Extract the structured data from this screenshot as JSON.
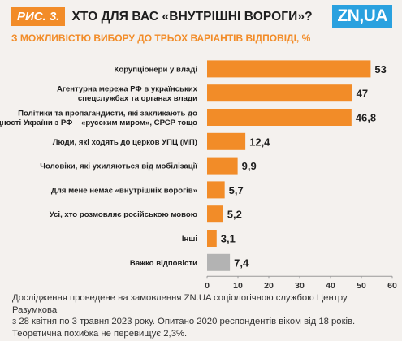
{
  "header": {
    "badge": "РИС. 3.",
    "title": "ХТО ДЛЯ ВАС «ВНУТРІШНІ ВОРОГИ»?",
    "subtitle": "З МОЖЛИВІСТЮ ВИБОРУ ДО ТРЬОХ ВАРІАНТІВ ВІДПОВІДІ, %",
    "logo": "ZN,UA"
  },
  "chart_data": {
    "type": "bar",
    "orientation": "horizontal",
    "categories": [
      [
        "Корупціонери у владі"
      ],
      [
        "Агентурна мережа РФ в українських",
        "спецслужбах та органах влади"
      ],
      [
        "Політики та пропагандисти, які закликають до",
        "єдності України з РФ – «русским миром», СРСР тощо"
      ],
      [
        "Люди, які ходять до церков УПЦ (МП)"
      ],
      [
        "Чоловіки, які ухиляються від мобілізації"
      ],
      [
        "Для мене немає «внутрішніх ворогів»"
      ],
      [
        "Усі, хто розмовляє російською мовою"
      ],
      [
        "Інші"
      ],
      [
        "Важко відповісти"
      ]
    ],
    "values": [
      53,
      47,
      46.8,
      12.4,
      9.9,
      5.7,
      5.2,
      3.1,
      7.4
    ],
    "value_labels": [
      "53",
      "47",
      "46,8",
      "12,4",
      "9,9",
      "5,7",
      "5,2",
      "3,1",
      "7,4"
    ],
    "bar_colors": [
      "#f28c28",
      "#f28c28",
      "#f28c28",
      "#f28c28",
      "#f28c28",
      "#f28c28",
      "#f28c28",
      "#f28c28",
      "#b3b3b3"
    ],
    "xlim": [
      0,
      60
    ],
    "xticks": [
      0,
      10,
      20,
      30,
      40,
      50,
      60
    ],
    "grid": false
  },
  "footer": {
    "lines": [
      "Дослідження проведене на замовлення ZN.UA соціологічною службою Центру Разумкова",
      "з 28 квітня по 3 травня 2023 року. Опитано 2020 респондентів віком від 18 років.",
      "Теоретична похибка не перевищує 2,3%."
    ]
  }
}
